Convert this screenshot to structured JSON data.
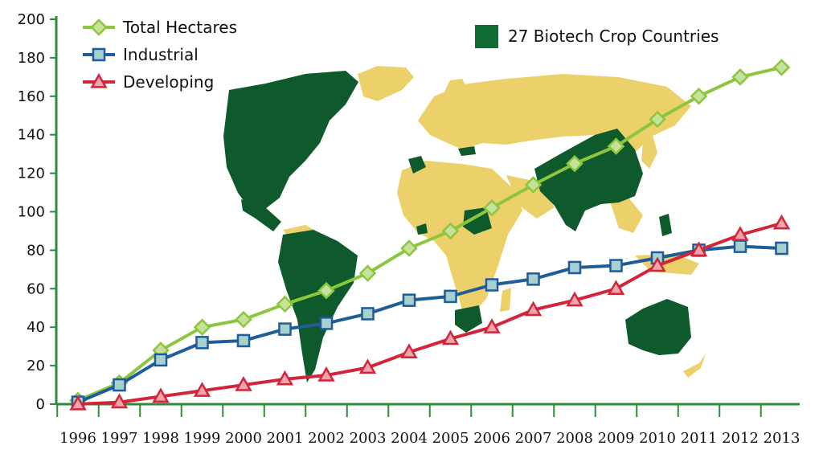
{
  "chart_data": {
    "type": "line",
    "title": "",
    "xlabel": "",
    "ylabel": "",
    "ylim": [
      0,
      200
    ],
    "yticks": [
      0,
      20,
      40,
      60,
      80,
      100,
      120,
      140,
      160,
      180,
      200
    ],
    "categories": [
      "1996",
      "1997",
      "1998",
      "1999",
      "2000",
      "2001",
      "2002",
      "2003",
      "2004",
      "2005",
      "2006",
      "2007",
      "2008",
      "2009",
      "2010",
      "2011",
      "2012",
      "2013"
    ],
    "grid": false,
    "legend_position": "top-left",
    "series": [
      {
        "name": "Total Hectares",
        "color": "#8cc63f",
        "marker": "diamond",
        "values": [
          2,
          11,
          28,
          40,
          44,
          52,
          59,
          68,
          81,
          90,
          102,
          114,
          125,
          134,
          148,
          160,
          170,
          175
        ]
      },
      {
        "name": "Industrial",
        "color": "#1f5c99",
        "marker": "square",
        "values": [
          1,
          10,
          23,
          32,
          33,
          39,
          42,
          47,
          54,
          56,
          62,
          65,
          71,
          72,
          76,
          80,
          82,
          81
        ]
      },
      {
        "name": "Developing",
        "color": "#d1263a",
        "marker": "triangle",
        "values": [
          0,
          1,
          4,
          7,
          10,
          13,
          15,
          19,
          27,
          34,
          40,
          49,
          54,
          60,
          72,
          80,
          88,
          94
        ]
      }
    ],
    "map_legend": {
      "label": "27 Biotech Crop Countries",
      "color": "#0f6d35"
    },
    "map_colors": {
      "biotech": "#0f5a2c",
      "other": "#ecd06a"
    }
  }
}
